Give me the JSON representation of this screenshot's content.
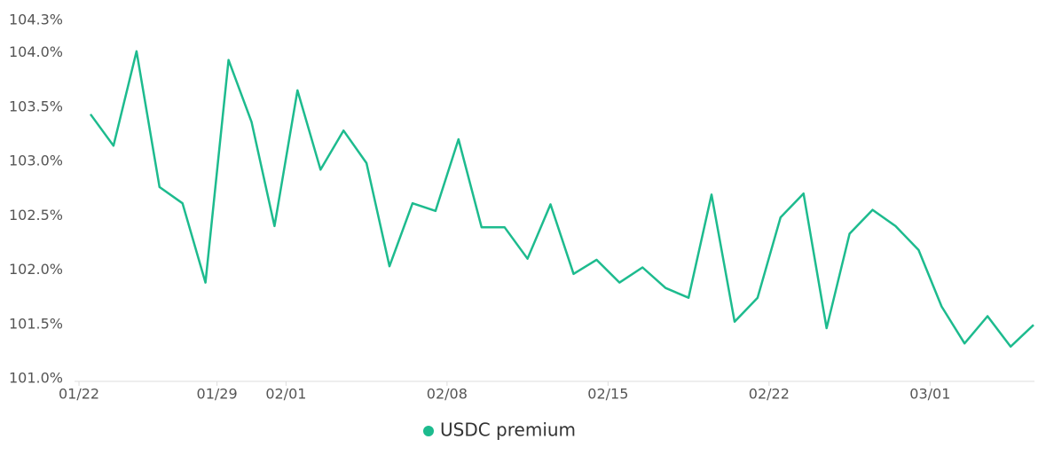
{
  "chart_data": {
    "type": "line",
    "categories": [
      "01/22",
      null,
      null,
      null,
      null,
      null,
      "01/29",
      null,
      null,
      "02/01",
      null,
      null,
      null,
      null,
      null,
      null,
      "02/08",
      null,
      null,
      null,
      null,
      null,
      null,
      "02/15",
      null,
      null,
      null,
      null,
      null,
      null,
      "02/22",
      null,
      null,
      null,
      null,
      null,
      null,
      "03/01",
      null,
      null,
      null,
      null
    ],
    "series": [
      {
        "name": "USDC premium",
        "color": "#1dbb8e",
        "values": [
          103.46,
          103.17,
          104.04,
          102.79,
          102.64,
          101.91,
          103.96,
          103.39,
          102.43,
          103.68,
          102.95,
          103.31,
          103.01,
          102.06,
          102.64,
          102.57,
          103.23,
          102.42,
          102.42,
          102.13,
          102.63,
          101.99,
          102.12,
          101.91,
          102.05,
          101.86,
          101.77,
          102.72,
          101.55,
          101.77,
          102.51,
          102.73,
          101.49,
          102.36,
          102.58,
          102.43,
          102.21,
          101.69,
          101.35,
          101.6,
          101.32,
          101.52
        ]
      }
    ],
    "ylim": [
      101.0,
      104.3
    ],
    "yticks": [
      {
        "value": 101.0,
        "label": "101.0%"
      },
      {
        "value": 101.5,
        "label": "101.5%"
      },
      {
        "value": 102.0,
        "label": "102.0%"
      },
      {
        "value": 102.5,
        "label": "102.5%"
      },
      {
        "value": 103.0,
        "label": "103.0%"
      },
      {
        "value": 103.5,
        "label": "103.5%"
      },
      {
        "value": 104.0,
        "label": "104.0%"
      },
      {
        "value": 104.3,
        "label": "104.3%"
      }
    ],
    "grid": false,
    "legend": "bottom"
  }
}
